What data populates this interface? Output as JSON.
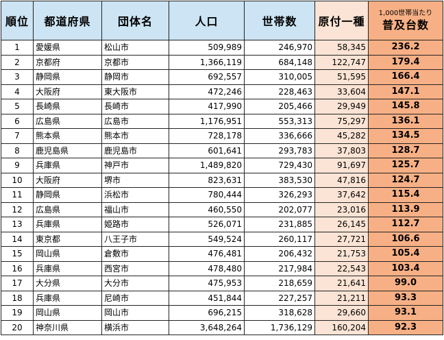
{
  "headers": {
    "rank": "順位",
    "prefecture": "都道府県",
    "city": "団体名",
    "population": "人口",
    "households": "世帯数",
    "moped": "原付一種",
    "rate_top": "1,000世帯当たり",
    "rate_bottom": "普及台数"
  },
  "colors": {
    "header_bg": "#cce4f3",
    "moped_bg": "#fbe4d5",
    "rate_bg": "#f7b085"
  },
  "rows": [
    {
      "rank": "1",
      "prefecture": "愛媛県",
      "city": "松山市",
      "population": "509,989",
      "households": "246,970",
      "moped": "58,345",
      "rate": "236.2"
    },
    {
      "rank": "2",
      "prefecture": "京都府",
      "city": "京都市",
      "population": "1,366,119",
      "households": "684,148",
      "moped": "122,747",
      "rate": "179.4"
    },
    {
      "rank": "3",
      "prefecture": "静岡県",
      "city": "静岡市",
      "population": "692,557",
      "households": "310,005",
      "moped": "51,595",
      "rate": "166.4"
    },
    {
      "rank": "4",
      "prefecture": "大阪府",
      "city": "東大阪市",
      "population": "472,246",
      "households": "228,463",
      "moped": "33,604",
      "rate": "147.1"
    },
    {
      "rank": "5",
      "prefecture": "長崎県",
      "city": "長崎市",
      "population": "417,990",
      "households": "205,466",
      "moped": "29,949",
      "rate": "145.8"
    },
    {
      "rank": "6",
      "prefecture": "広島県",
      "city": "広島市",
      "population": "1,176,951",
      "households": "553,313",
      "moped": "75,297",
      "rate": "136.1"
    },
    {
      "rank": "7",
      "prefecture": "熊本県",
      "city": "熊本市",
      "population": "728,178",
      "households": "336,666",
      "moped": "45,282",
      "rate": "134.5"
    },
    {
      "rank": "8",
      "prefecture": "鹿児島県",
      "city": "鹿児島市",
      "population": "601,641",
      "households": "293,783",
      "moped": "37,803",
      "rate": "128.7"
    },
    {
      "rank": "9",
      "prefecture": "兵庫県",
      "city": "神戸市",
      "population": "1,489,820",
      "households": "729,430",
      "moped": "91,697",
      "rate": "125.7"
    },
    {
      "rank": "10",
      "prefecture": "大阪府",
      "city": "堺市",
      "population": "823,631",
      "households": "383,530",
      "moped": "47,816",
      "rate": "124.7"
    },
    {
      "rank": "11",
      "prefecture": "静岡県",
      "city": "浜松市",
      "population": "780,444",
      "households": "326,293",
      "moped": "37,642",
      "rate": "115.4"
    },
    {
      "rank": "12",
      "prefecture": "広島県",
      "city": "福山市",
      "population": "460,550",
      "households": "202,077",
      "moped": "23,016",
      "rate": "113.9"
    },
    {
      "rank": "13",
      "prefecture": "兵庫県",
      "city": "姫路市",
      "population": "526,071",
      "households": "231,885",
      "moped": "26,145",
      "rate": "112.7"
    },
    {
      "rank": "14",
      "prefecture": "東京都",
      "city": "八王子市",
      "population": "549,524",
      "households": "260,117",
      "moped": "27,721",
      "rate": "106.6"
    },
    {
      "rank": "15",
      "prefecture": "岡山県",
      "city": "倉敷市",
      "population": "476,481",
      "households": "206,432",
      "moped": "21,753",
      "rate": "105.4"
    },
    {
      "rank": "16",
      "prefecture": "兵庫県",
      "city": "西宮市",
      "population": "478,480",
      "households": "217,984",
      "moped": "22,543",
      "rate": "103.4"
    },
    {
      "rank": "17",
      "prefecture": "大分県",
      "city": "大分市",
      "population": "475,953",
      "households": "218,659",
      "moped": "21,641",
      "rate": "99.0"
    },
    {
      "rank": "18",
      "prefecture": "兵庫県",
      "city": "尼崎市",
      "population": "451,844",
      "households": "227,257",
      "moped": "21,211",
      "rate": "93.3"
    },
    {
      "rank": "19",
      "prefecture": "岡山県",
      "city": "岡山市",
      "population": "696,215",
      "households": "318,628",
      "moped": "29,660",
      "rate": "93.1"
    },
    {
      "rank": "20",
      "prefecture": "神奈川県",
      "city": "横浜市",
      "population": "3,648,264",
      "households": "1,736,129",
      "moped": "160,204",
      "rate": "92.3"
    }
  ]
}
